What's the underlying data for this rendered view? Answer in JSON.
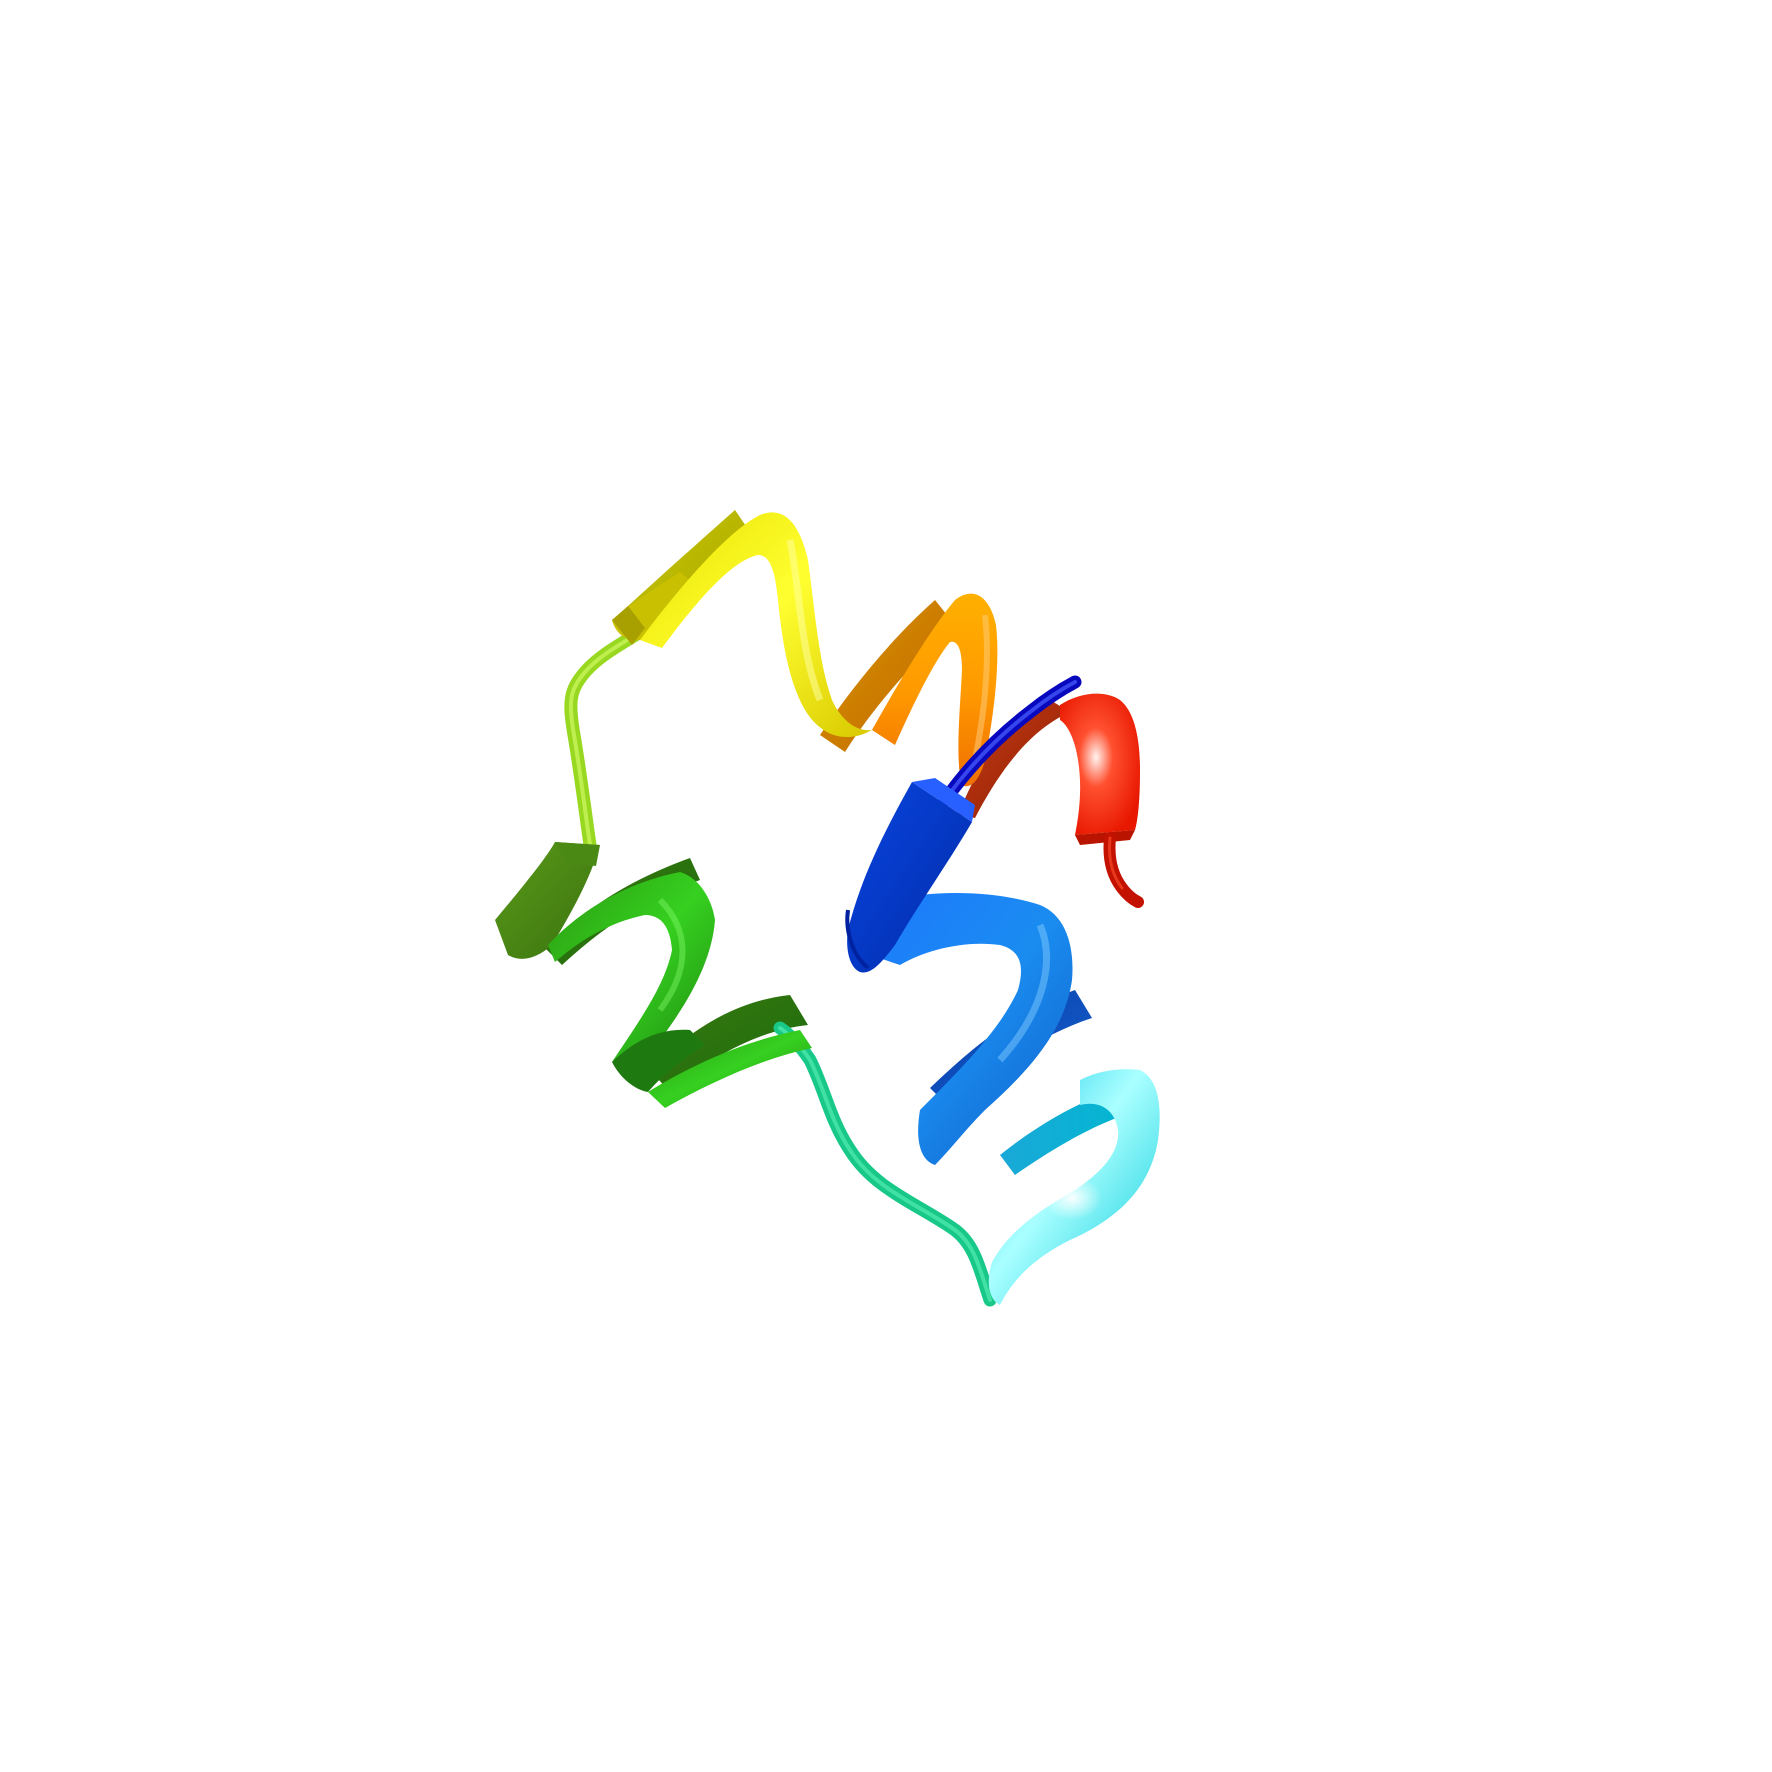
{
  "scene": {
    "background": "#ffffff",
    "subject": "protein-ribbon",
    "color_scheme": "rainbow-n-to-c",
    "segments": [
      {
        "id": "n-terminus-tail",
        "kind": "coil",
        "color": "#1010e0"
      },
      {
        "id": "helix-1",
        "kind": "helix",
        "color_start": "#0038d8",
        "color_end": "#00e8f0"
      },
      {
        "id": "loop-1",
        "kind": "coil",
        "color": "#20d890"
      },
      {
        "id": "helix-2",
        "kind": "helix",
        "color_start": "#40a010",
        "color_end": "#109010"
      },
      {
        "id": "loop-2",
        "kind": "coil",
        "color": "#a0e020"
      },
      {
        "id": "helix-3",
        "kind": "helix",
        "color_start": "#e8e000",
        "color_end": "#f08000"
      },
      {
        "id": "c-terminus-turn",
        "kind": "coil",
        "color": "#e82000"
      }
    ]
  }
}
